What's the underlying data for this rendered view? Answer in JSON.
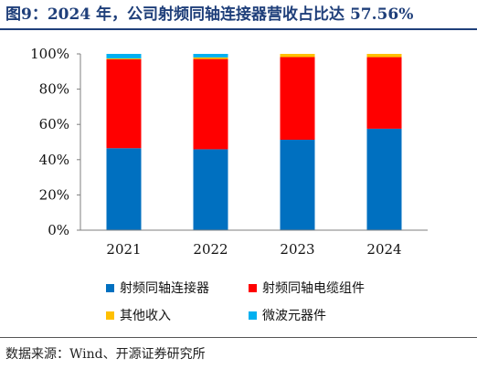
{
  "title": "图9：2024 年，公司射频同轴连接器营收占比达 57.56%",
  "source": "数据来源：Wind、开源证券研究所",
  "chart_data": {
    "type": "bar",
    "stacked": true,
    "categories": [
      "2021",
      "2022",
      "2023",
      "2024"
    ],
    "ylim": [
      0,
      100
    ],
    "yticks": [
      "0%",
      "20%",
      "40%",
      "60%",
      "80%",
      "100%"
    ],
    "yticks_values": [
      0,
      20,
      40,
      60,
      80,
      100
    ],
    "legend_placement": "bottom",
    "series": [
      {
        "name": "射频同轴连接器",
        "color": "#0070c0",
        "values": [
          46.5,
          45.9,
          51.3,
          57.56
        ]
      },
      {
        "name": "射频同轴电缆组件",
        "color": "#ff0000",
        "values": [
          50.4,
          51.2,
          46.9,
          40.6
        ]
      },
      {
        "name": "其他收入",
        "color": "#ffc000",
        "values": [
          0.5,
          0.9,
          1.8,
          1.84
        ]
      },
      {
        "name": "微波元器件",
        "color": "#00b0f0",
        "values": [
          2.6,
          2.0,
          0.0,
          0.0
        ]
      }
    ]
  }
}
